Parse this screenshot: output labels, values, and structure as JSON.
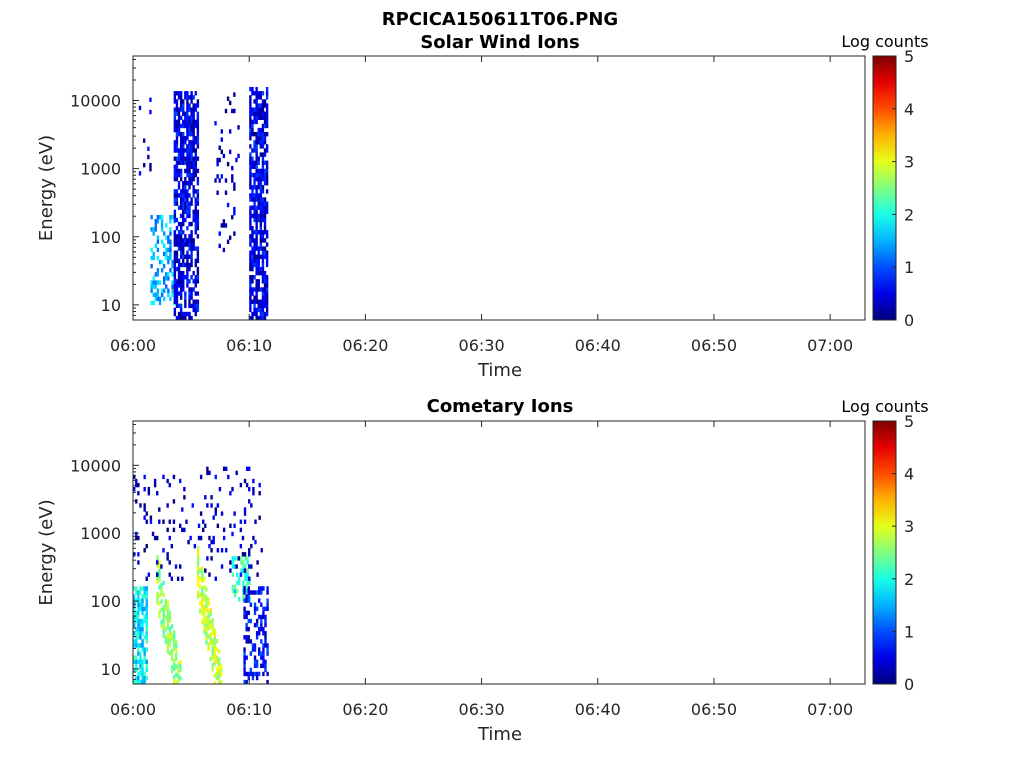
{
  "figure_title": "RPCICA150611T06.PNG",
  "chart_data": [
    {
      "type": "heatmap",
      "title": "Solar Wind Ions",
      "xlabel": "Time",
      "ylabel": "Energy (eV)",
      "y_scale": "log",
      "xlim": [
        "06:00",
        "07:03"
      ],
      "ylim": [
        6,
        45000
      ],
      "x_ticks": [
        "06:00",
        "06:10",
        "06:20",
        "06:30",
        "06:40",
        "06:50",
        "07:00"
      ],
      "y_ticks": [
        "10",
        "100",
        "1000",
        "10000"
      ],
      "colorbar": {
        "label": "Log counts",
        "min": 0,
        "max": 5,
        "ticks": [
          "0",
          "1",
          "2",
          "3",
          "4",
          "5"
        ],
        "colormap": "jet"
      },
      "data_time_range": [
        "06:00",
        "06:11"
      ],
      "features": [
        {
          "t_start": "06:00.5",
          "t_end": "06:01.5",
          "e_min": 800,
          "e_max": 10000,
          "log_counts": 0.3,
          "density": "sparse"
        },
        {
          "t_start": "06:01.5",
          "t_end": "06:03.5",
          "e_min": 10,
          "e_max": 200,
          "log_counts": 1.5,
          "density": "medium"
        },
        {
          "t_start": "06:03.5",
          "t_end": "06:05.5",
          "e_min": 6,
          "e_max": 12000,
          "log_counts": 0.5,
          "density": "dense"
        },
        {
          "t_start": "06:07",
          "t_end": "06:09",
          "e_min": 60,
          "e_max": 12000,
          "log_counts": 0.3,
          "density": "sparse"
        },
        {
          "t_start": "06:10",
          "t_end": "06:11.5",
          "e_min": 6,
          "e_max": 14000,
          "log_counts": 0.5,
          "density": "dense"
        }
      ]
    },
    {
      "type": "heatmap",
      "title": "Cometary Ions",
      "xlabel": "Time",
      "ylabel": "Energy (eV)",
      "y_scale": "log",
      "xlim": [
        "06:00",
        "07:03"
      ],
      "ylim": [
        6,
        45000
      ],
      "x_ticks": [
        "06:00",
        "06:10",
        "06:20",
        "06:30",
        "06:40",
        "06:50",
        "07:00"
      ],
      "y_ticks": [
        "10",
        "100",
        "1000",
        "10000"
      ],
      "colorbar": {
        "label": "Log counts",
        "min": 0,
        "max": 5,
        "ticks": [
          "0",
          "1",
          "2",
          "3",
          "4",
          "5"
        ],
        "colormap": "jet"
      },
      "data_time_range": [
        "06:00",
        "06:11"
      ],
      "features": [
        {
          "t_start": "06:00",
          "t_end": "06:01.2",
          "e_min": 6,
          "e_max": 150,
          "log_counts": 1.8,
          "density": "dense"
        },
        {
          "t_start": "06:02",
          "t_end": "06:04",
          "e_min": 6,
          "e_max": 250,
          "log_counts": 2.6,
          "density": "dense",
          "shape": "descending"
        },
        {
          "t_start": "06:05.5",
          "t_end": "06:07.5",
          "e_min": 6,
          "e_max": 300,
          "log_counts": 2.8,
          "density": "dense",
          "shape": "descending"
        },
        {
          "t_start": "06:08.5",
          "t_end": "06:10",
          "e_min": 100,
          "e_max": 400,
          "log_counts": 2.0,
          "density": "medium"
        },
        {
          "t_start": "06:09.5",
          "t_end": "06:11.5",
          "e_min": 6,
          "e_max": 150,
          "log_counts": 0.6,
          "density": "medium"
        },
        {
          "t_start": "06:00",
          "t_end": "06:11",
          "e_min": 200,
          "e_max": 9000,
          "log_counts": 0.3,
          "density": "sparse"
        }
      ]
    }
  ]
}
